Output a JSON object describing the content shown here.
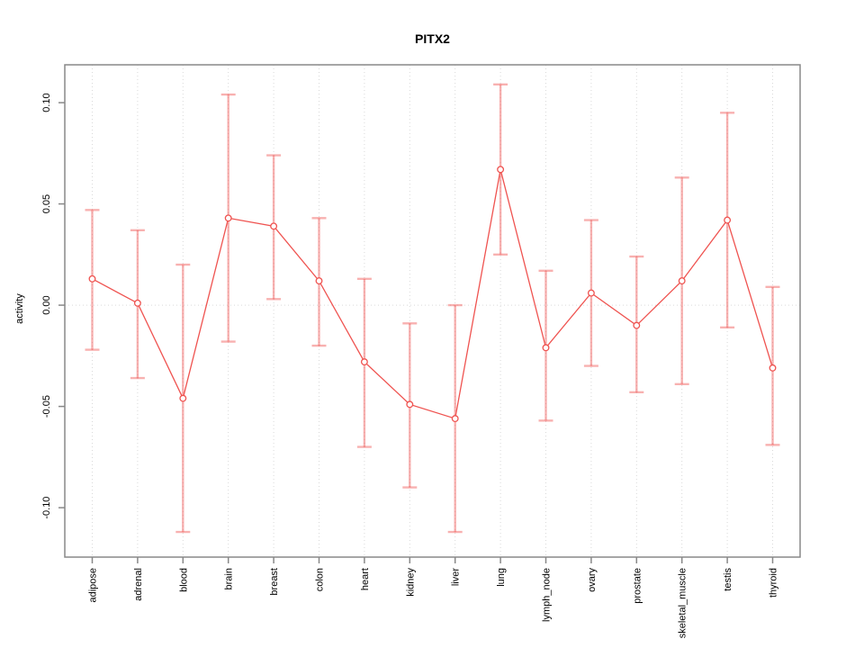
{
  "title": "PITX2",
  "chart_data": {
    "type": "line",
    "title": "PITX2",
    "xlabel": "",
    "ylabel": "activity",
    "legend": "none",
    "grid": "dotted vertical gridline at each category plus dotted horizontal zero line",
    "categories": [
      "adipose",
      "adrenal",
      "blood",
      "brain",
      "breast",
      "colon",
      "heart",
      "kidney",
      "liver",
      "lung",
      "lymph_node",
      "ovary",
      "prostate",
      "skeletal_muscle",
      "testis",
      "thyroid"
    ],
    "series": [
      {
        "name": "activity",
        "values": [
          0.013,
          0.001,
          -0.046,
          0.043,
          0.039,
          0.012,
          -0.028,
          -0.049,
          -0.056,
          0.067,
          -0.021,
          0.006,
          -0.01,
          0.012,
          0.042,
          -0.031
        ],
        "err_low": [
          -0.022,
          -0.036,
          -0.112,
          -0.018,
          0.003,
          -0.02,
          -0.07,
          -0.09,
          -0.112,
          0.025,
          -0.057,
          -0.03,
          -0.043,
          -0.039,
          -0.011,
          -0.069
        ],
        "err_high": [
          0.047,
          0.037,
          0.02,
          0.104,
          0.074,
          0.043,
          0.013,
          -0.009,
          0.0,
          0.109,
          0.017,
          0.042,
          0.024,
          0.063,
          0.095,
          0.009
        ]
      }
    ],
    "yticks": [
      {
        "v": -0.1,
        "label": "-0.10"
      },
      {
        "v": -0.05,
        "label": "-0.05"
      },
      {
        "v": 0.0,
        "label": "0.00"
      },
      {
        "v": 0.05,
        "label": "0.05"
      },
      {
        "v": 0.1,
        "label": "0.10"
      }
    ],
    "ylim": [
      -0.1244,
      0.1187
    ],
    "colors": {
      "line": "#ef5350",
      "point_fill": "#ffffff",
      "error_bar": "rgba(239,83,80,0.45)",
      "grid": "#d9d9d9",
      "frame": "#888888",
      "text": "#000000"
    }
  }
}
